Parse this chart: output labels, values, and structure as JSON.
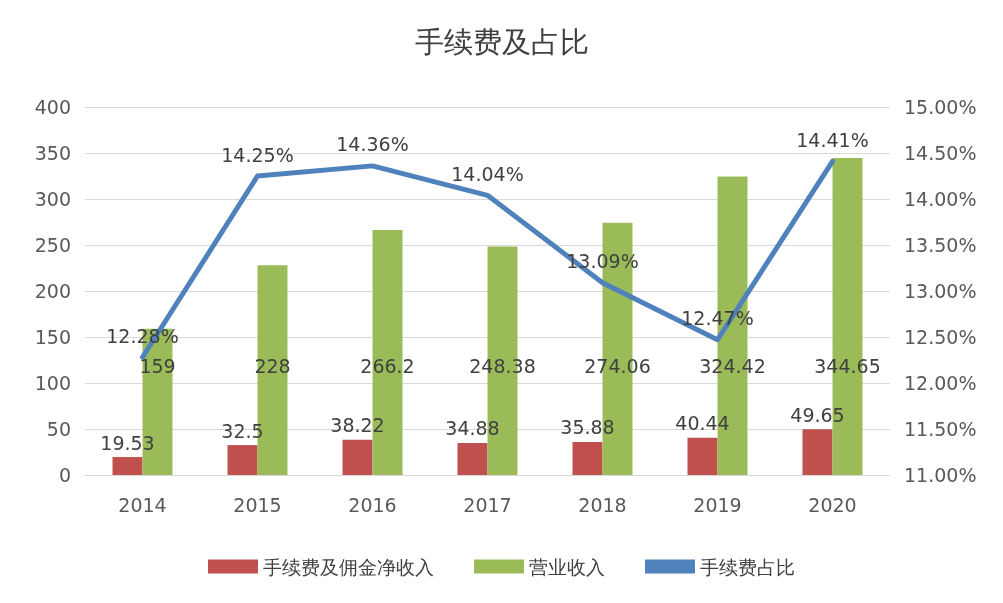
{
  "chart_data": {
    "type": "bar",
    "title": "手续费及占比",
    "categories": [
      "2014",
      "2015",
      "2016",
      "2017",
      "2018",
      "2019",
      "2020"
    ],
    "series": [
      {
        "name": "手续费及佣金净收入",
        "color": "#c0504d",
        "values": [
          19.53,
          32.5,
          38.22,
          34.88,
          35.88,
          40.44,
          49.65
        ]
      },
      {
        "name": "营业收入",
        "color": "#9bbb59",
        "values": [
          159,
          228,
          266.2,
          248.38,
          274.06,
          324.42,
          344.65
        ]
      },
      {
        "name": "手续费占比",
        "type": "line",
        "axis": "y2",
        "color": "#4f81bd",
        "values": [
          12.28,
          14.25,
          14.36,
          14.04,
          13.09,
          12.47,
          14.41
        ],
        "value_labels": [
          "12.28%",
          "14.25%",
          "14.36%",
          "14.04%",
          "13.09%",
          "12.47%",
          "14.41%"
        ]
      }
    ],
    "ylim": [
      0,
      400
    ],
    "yticks": [
      0,
      50,
      100,
      150,
      200,
      250,
      300,
      350,
      400
    ],
    "y2lim": [
      11,
      15
    ],
    "y2ticks": [
      {
        "value": 11,
        "label": "11.00%"
      },
      {
        "value": 11.5,
        "label": "11.50%"
      },
      {
        "value": 12,
        "label": "12.00%"
      },
      {
        "value": 12.5,
        "label": "12.50%"
      },
      {
        "value": 13,
        "label": "13.00%"
      },
      {
        "value": 13.5,
        "label": "13.50%"
      },
      {
        "value": 14,
        "label": "14.00%"
      },
      {
        "value": 14.5,
        "label": "14.50%"
      },
      {
        "value": 15,
        "label": "15.00%"
      }
    ],
    "grid": "y",
    "legend": "bottom",
    "data_labels": true,
    "marker": "none",
    "line_style": "solid"
  }
}
